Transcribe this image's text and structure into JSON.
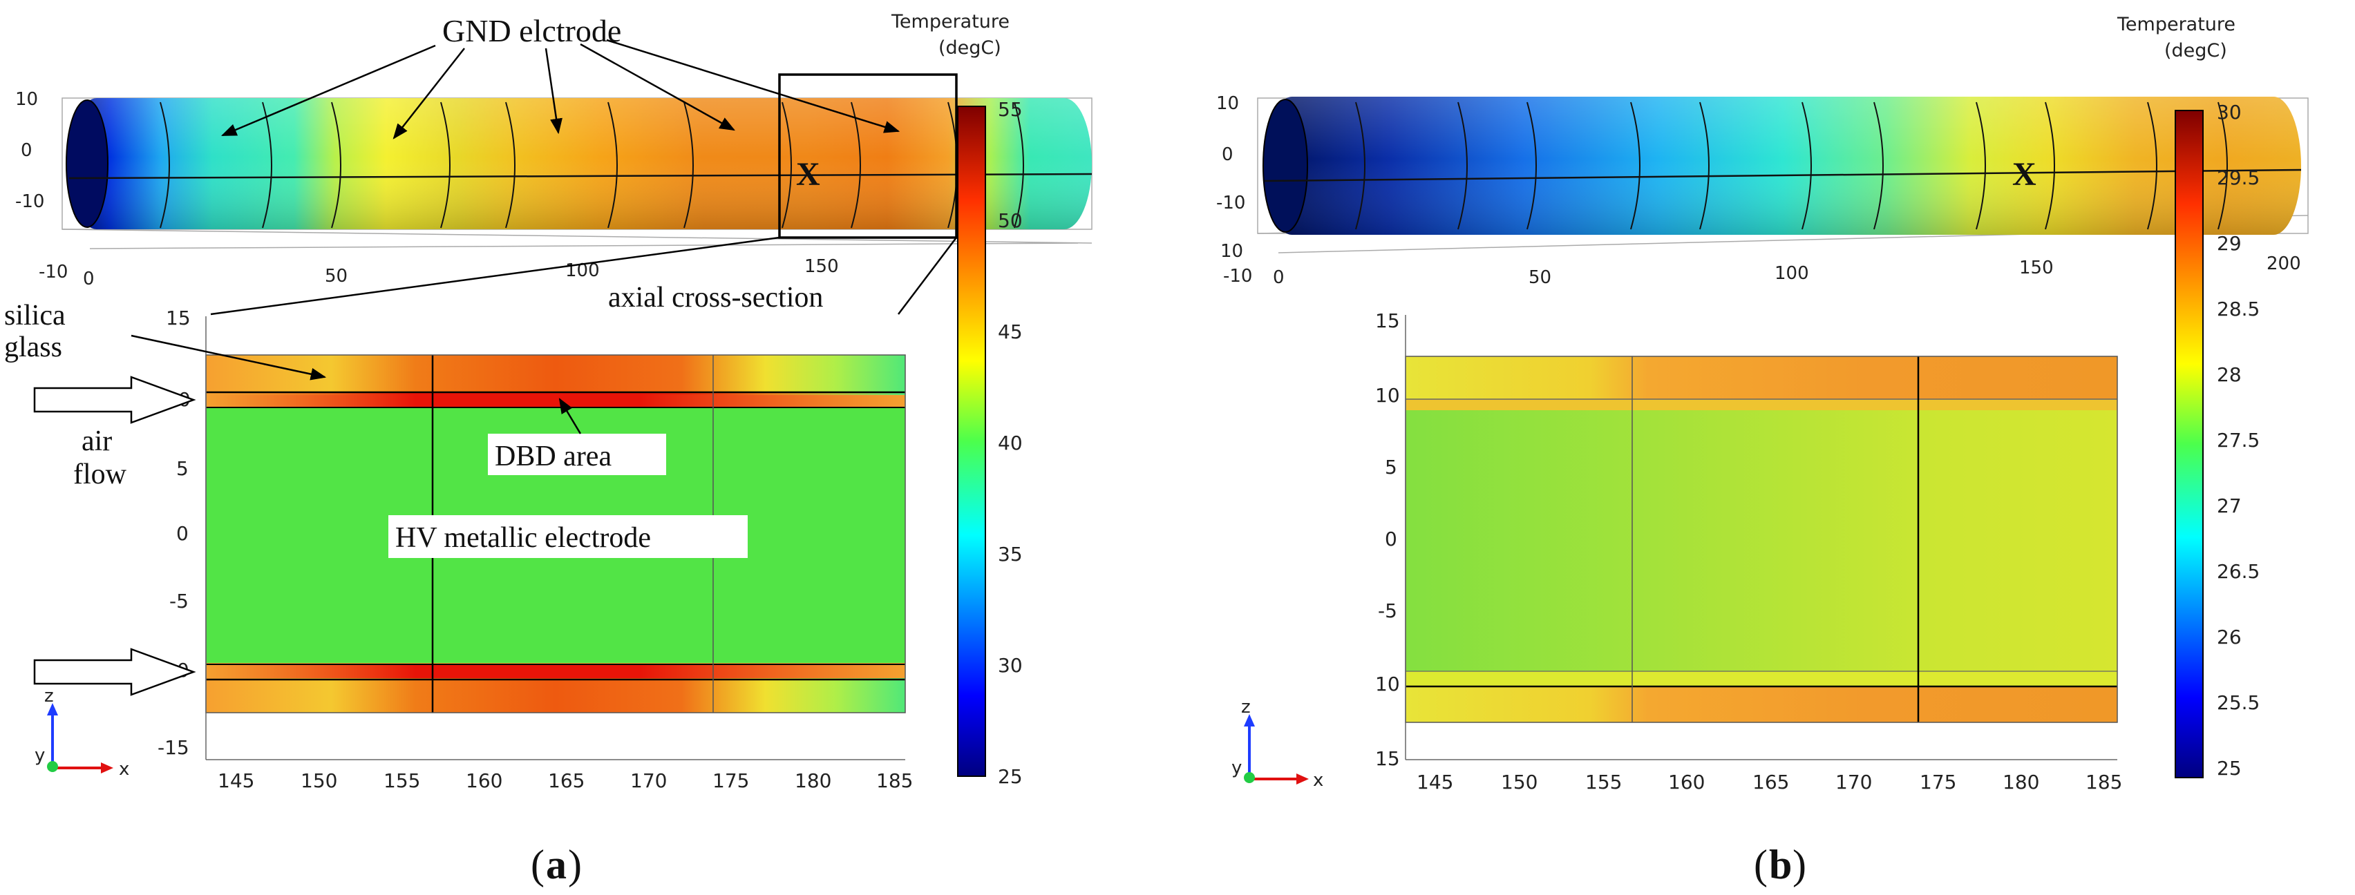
{
  "figure_a": {
    "label_open": "(",
    "label_letter": "a",
    "label_close": ")",
    "colorbar": {
      "title_line1": "Temperature",
      "title_line2": "(degC)",
      "ticks": [
        "55",
        "50",
        "45",
        "40",
        "35",
        "30",
        "25"
      ]
    },
    "annotations": {
      "gnd": "GND elctrode",
      "axial": "axial cross-section",
      "silica_line1": "silica",
      "silica_line2": "glass",
      "air_line1": "air",
      "air_line2": "flow",
      "dbd": "DBD area",
      "hv": "HV metallic electrode",
      "marker": "X"
    },
    "view3d_axes": {
      "z_ticks": [
        "10",
        "0",
        "-10"
      ],
      "x_ticks": [
        "-10",
        "0",
        "50",
        "100",
        "150"
      ]
    },
    "cross_section_axes": {
      "y_ticks": [
        "15",
        "10",
        "5",
        "0",
        "-5",
        "-10",
        "-15"
      ],
      "x_ticks": [
        "145",
        "150",
        "155",
        "160",
        "165",
        "170",
        "175",
        "180",
        "185"
      ]
    },
    "triad": {
      "z": "z",
      "y": "y",
      "x": "x"
    }
  },
  "figure_b": {
    "label_open": "(",
    "label_letter": "b",
    "label_close": ")",
    "colorbar": {
      "title_line1": "Temperature",
      "title_line2": "(degC)",
      "ticks": [
        "30",
        "29.5",
        "29",
        "28.5",
        "28",
        "27.5",
        "27",
        "26.5",
        "26",
        "25.5",
        "25"
      ]
    },
    "annotations": {
      "marker": "X"
    },
    "view3d_axes": {
      "z_ticks": [
        "10",
        "0",
        "-10"
      ],
      "x_ticks": [
        "10",
        "-10",
        "0",
        "50",
        "100",
        "150",
        "200"
      ]
    },
    "cross_section_axes": {
      "y_ticks": [
        "15",
        "10",
        "5",
        "0",
        "-5",
        "10",
        "15"
      ],
      "x_ticks": [
        "145",
        "150",
        "155",
        "160",
        "165",
        "170",
        "175",
        "180",
        "185"
      ]
    },
    "triad": {
      "z": "z",
      "y": "y",
      "x": "x"
    }
  }
}
